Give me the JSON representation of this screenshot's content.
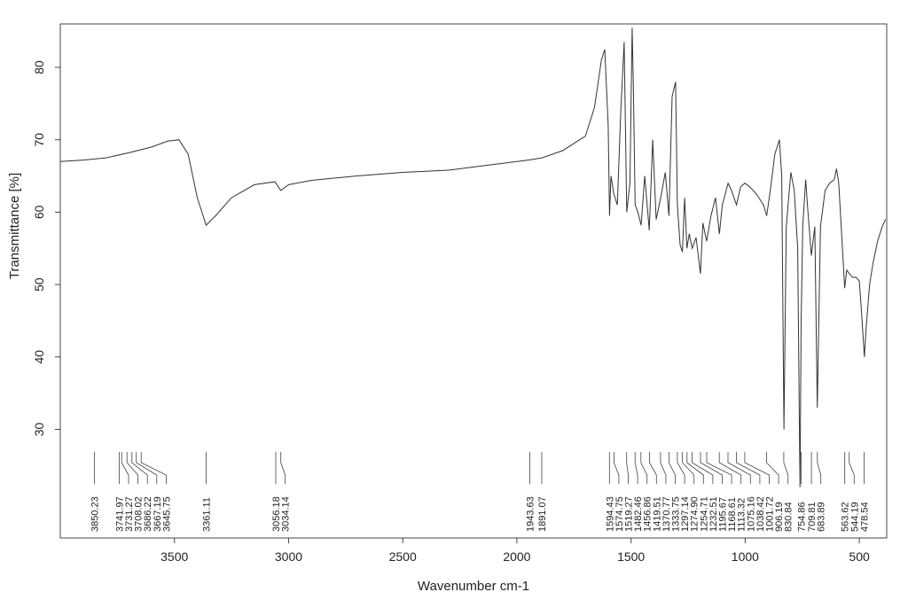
{
  "chart_data": {
    "type": "line",
    "title": "",
    "xlabel": "Wavenumber cm-1",
    "ylabel": "Transmittance [%]",
    "xlim": [
      4000,
      380
    ],
    "ylim": [
      15,
      86
    ],
    "x_reversed": true,
    "grid": false,
    "x_ticks": [
      3500,
      3000,
      2500,
      2000,
      1500,
      1000,
      500
    ],
    "y_ticks": [
      30,
      40,
      50,
      60,
      70,
      80
    ],
    "line_color": "#333333",
    "series": [
      {
        "x": [
          4000,
          3900,
          3800,
          3700,
          3600,
          3530,
          3480,
          3440,
          3400,
          3361,
          3320,
          3250,
          3150,
          3060,
          3034,
          3000,
          2900,
          2700,
          2500,
          2300,
          2100,
          1950,
          1890,
          1800,
          1700,
          1660,
          1630,
          1615,
          1600,
          1594,
          1588,
          1575,
          1560,
          1545,
          1530,
          1519,
          1505,
          1495,
          1490,
          1482,
          1470,
          1456,
          1440,
          1420,
          1405,
          1390,
          1370,
          1350,
          1334,
          1320,
          1305,
          1297,
          1285,
          1275,
          1265,
          1255,
          1245,
          1232,
          1215,
          1196,
          1185,
          1169,
          1150,
          1130,
          1113,
          1100,
          1075,
          1060,
          1038,
          1020,
          1001,
          980,
          950,
          920,
          906,
          890,
          870,
          850,
          840,
          830,
          820,
          800,
          785,
          770,
          760,
          755,
          748,
          735,
          725,
          710,
          695,
          684,
          670,
          650,
          630,
          610,
          600,
          590,
          564,
          555,
          544,
          530,
          515,
          500,
          490,
          478,
          470,
          455,
          440,
          420,
          400,
          385
        ],
        "y": [
          67.0,
          67.2,
          67.5,
          68.2,
          69.0,
          69.8,
          70.0,
          68.0,
          62.0,
          58.2,
          59.5,
          62.0,
          63.8,
          64.2,
          63.0,
          63.8,
          64.4,
          65.0,
          65.5,
          65.8,
          66.6,
          67.2,
          67.5,
          68.5,
          70.5,
          74.5,
          81.0,
          82.5,
          72.0,
          59.5,
          65.0,
          62.5,
          61.0,
          74.0,
          83.5,
          60.0,
          64.0,
          85.5,
          78.0,
          61.0,
          60.0,
          58.2,
          65.0,
          57.5,
          70.0,
          59.0,
          62.0,
          65.5,
          59.5,
          76.0,
          78.0,
          61.0,
          55.5,
          54.5,
          62.0,
          55.0,
          57.0,
          55.0,
          56.5,
          51.5,
          58.5,
          56.0,
          59.5,
          62.0,
          57.0,
          61.0,
          64.0,
          63.0,
          61.0,
          63.5,
          64.0,
          63.5,
          62.5,
          61.0,
          59.5,
          63.0,
          68.0,
          70.0,
          65.0,
          30.0,
          58.0,
          65.5,
          63.0,
          55.0,
          22.0,
          45.0,
          58.0,
          64.5,
          60.0,
          54.0,
          58.0,
          33.0,
          58.0,
          63.0,
          64.0,
          64.5,
          66.0,
          64.0,
          49.5,
          52.0,
          51.5,
          51.0,
          51.0,
          50.5,
          46.0,
          40.0,
          44.0,
          50.0,
          53.0,
          56.0,
          58.0,
          59.0
        ]
      }
    ],
    "peak_labels": [
      "3850.23",
      "3741.97",
      "3731.27",
      "3708.02",
      "3686.22",
      "3667.19",
      "3645.75",
      "3361.11",
      "3056.18",
      "3034.14",
      "1943.63",
      "1891.07",
      "1594.43",
      "1574.75",
      "1519.27",
      "1482.46",
      "1456.86",
      "1419.51",
      "1370.77",
      "1333.75",
      "1297.14",
      "1274.90",
      "1254.71",
      "1232.51",
      "1195.67",
      "1168.61",
      "1113.32",
      "1075.16",
      "1038.42",
      "1001.72",
      "906.19",
      "830.84",
      "754.86",
      "709.81",
      "683.89",
      "563.62",
      "544.19",
      "478.54"
    ]
  }
}
